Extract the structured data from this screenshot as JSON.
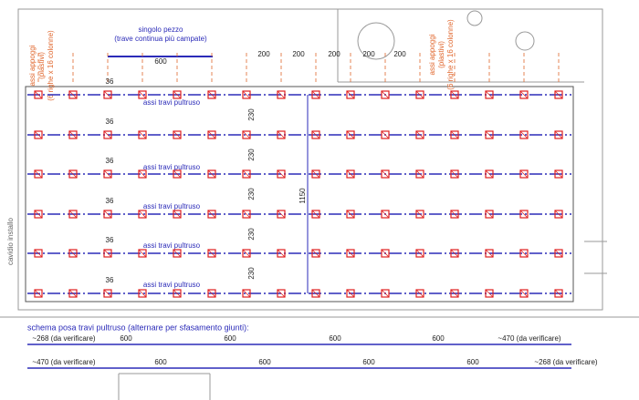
{
  "top_note": {
    "title": "singolo pezzo",
    "subtitle": "(trave continua più campate)",
    "length": "600"
  },
  "supports_left": {
    "line1": "assi appoggi",
    "line2": "(plastivi)",
    "line3": "(6 righe x 16 colonne)"
  },
  "supports_right": {
    "line1": "assi appoggi",
    "line2": "(plastivi)",
    "line3": "(6 righe x 16 colonne)"
  },
  "spacing_labels": [
    "200",
    "200",
    "200",
    "200",
    "200"
  ],
  "offset_labels": [
    "36",
    "36",
    "36",
    "36",
    "36",
    "36"
  ],
  "beam_labels": [
    "assi travi pultruso",
    "assi travi pultruso",
    "assi travi pultruso",
    "assi travi pultruso",
    "assi travi pultruso"
  ],
  "row_spacing_labels": [
    "230",
    "230",
    "230",
    "230",
    "230"
  ],
  "total_height": "1150",
  "side_note": "cavidio installo",
  "schema": {
    "title": "schema posa travi pultruso (alternare per sfasamento giunti):",
    "rows": [
      [
        "~268 (da verificare)",
        "600",
        "600",
        "600",
        "600",
        "~470 (da verificare)"
      ],
      [
        "~470 (da verificare)",
        "600",
        "600",
        "600",
        "600",
        "~268 (da verificare)"
      ]
    ]
  }
}
